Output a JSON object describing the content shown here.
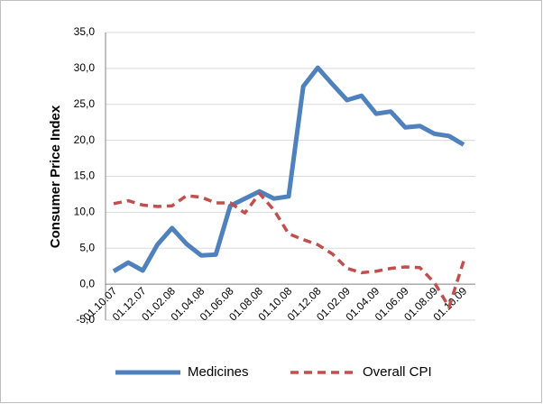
{
  "chart_data": {
    "type": "line",
    "y_label": "Consumer Price Index",
    "categories": [
      "01.10.07",
      null,
      "01.12.07",
      null,
      "01.02.08",
      null,
      "01.04.08",
      null,
      "01.06.08",
      null,
      "01.08.08",
      null,
      "01.10.08",
      null,
      "01.12.08",
      null,
      "01.02.09",
      null,
      "01.04.09",
      null,
      "01.06.09",
      null,
      "01.08.09",
      null,
      "01.10.09"
    ],
    "series": [
      {
        "name": "Medicines",
        "color": "#4f81bd",
        "dashed": false,
        "values": [
          1.8,
          3.0,
          1.9,
          5.5,
          7.8,
          5.6,
          4.0,
          4.1,
          10.9,
          11.9,
          12.9,
          11.9,
          12.2,
          27.5,
          30.1,
          27.8,
          25.6,
          26.2,
          23.7,
          24.0,
          21.8,
          22.0,
          20.9,
          20.6,
          19.4
        ]
      },
      {
        "name": "Overall CPI",
        "color": "#c0504d",
        "dashed": true,
        "values": [
          11.2,
          11.6,
          11.0,
          10.8,
          10.9,
          12.3,
          12.1,
          11.3,
          11.3,
          9.9,
          12.6,
          10.3,
          7.0,
          6.2,
          5.5,
          4.2,
          2.2,
          1.6,
          1.8,
          2.2,
          2.4,
          2.3,
          0.2,
          -3.2,
          3.2
        ]
      }
    ],
    "ylim": [
      -5,
      35
    ],
    "yticks": [
      {
        "value": -5,
        "label": "-5,0"
      },
      {
        "value": 0,
        "label": "0,0"
      },
      {
        "value": 5,
        "label": "5,0"
      },
      {
        "value": 10,
        "label": "10,0"
      },
      {
        "value": 15,
        "label": "15,0"
      },
      {
        "value": 20,
        "label": "20,0"
      },
      {
        "value": 25,
        "label": "25,0"
      },
      {
        "value": 30,
        "label": "30,0"
      },
      {
        "value": 35,
        "label": "35,0"
      }
    ],
    "grid": true,
    "legend": "bottom"
  }
}
